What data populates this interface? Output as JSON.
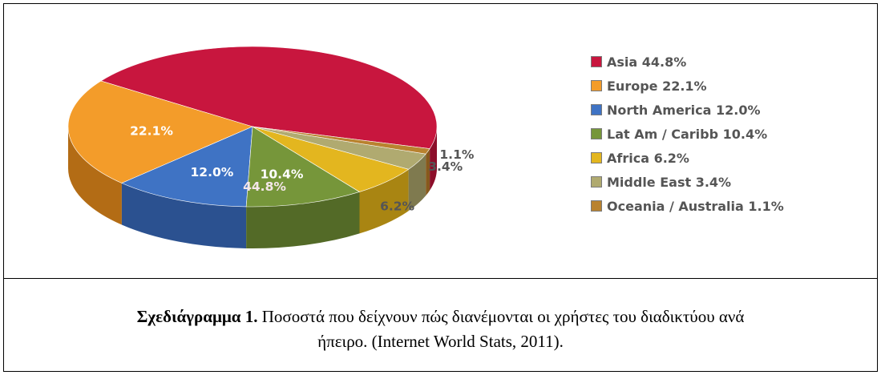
{
  "chart_data": {
    "type": "pie",
    "categories": [
      "Asia",
      "Europe",
      "North America",
      "Lat Am / Caribb",
      "Africa",
      "Middle East",
      "Oceania / Australia"
    ],
    "values": [
      44.8,
      22.1,
      12.0,
      10.4,
      6.2,
      3.4,
      1.1
    ],
    "value_labels": [
      "44.8%",
      "22.1%",
      "12.0%",
      "10.4%",
      "6.2%",
      "3.4%",
      "1.1%"
    ],
    "legend_entries": [
      "Asia  44.8%",
      "Europe  22.1%",
      "North America  12.0%",
      "Lat Am / Caribb  10.4%",
      "Africa  6.2%",
      "Middle East  3.4%",
      "Oceania / Australia  1.1%"
    ],
    "colors": [
      "#c8163e",
      "#f39c2a",
      "#3f73c4",
      "#76963a",
      "#e3b61f",
      "#b0aa70",
      "#b9822f"
    ],
    "side_colors": [
      "#8c0e2a",
      "#b36c15",
      "#2b5190",
      "#536a27",
      "#a98512",
      "#7f7a4f",
      "#86591d"
    ],
    "legend_placement": "right",
    "style": "3d"
  },
  "caption": {
    "label": "Σχεδιάγραμμα 1.",
    "text_line1": " Ποσοστά που δείχνουν πώς διανέμονται οι χρήστες του διαδικτύου ανά",
    "text_line2": "ήπειρο. (Internet World Stats, 2011)."
  }
}
